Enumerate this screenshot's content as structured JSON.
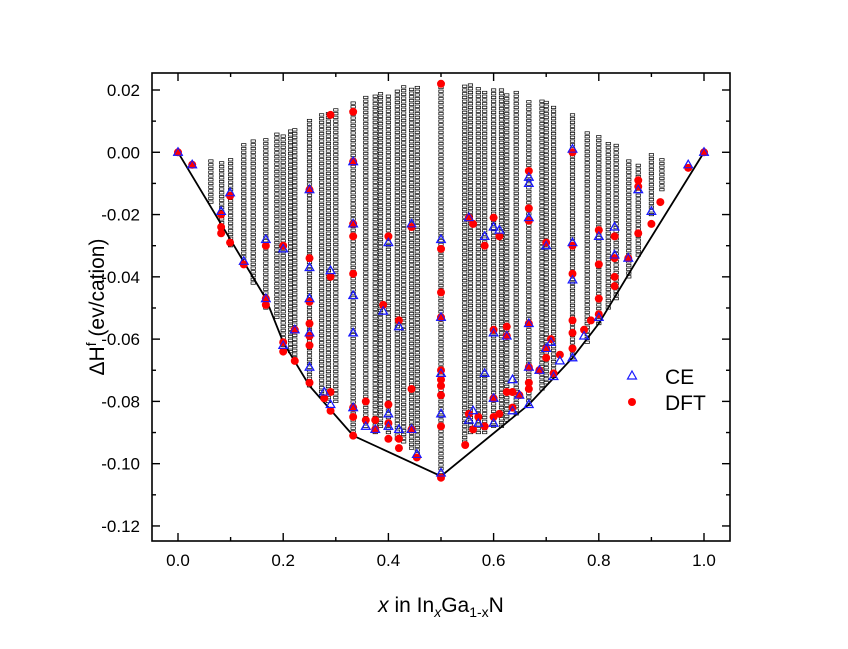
{
  "chart_data": {
    "type": "scatter",
    "xlabel_parts": {
      "x": "x",
      "in": " in In",
      "sub1": "x",
      "ga": "Ga",
      "sub2": "1-x",
      "n": "N"
    },
    "ylabel_parts": {
      "main": "ΔH",
      "sup": "f",
      "unit": " (ev/cation)"
    },
    "xlim": [
      -0.05,
      1.05
    ],
    "ylim": [
      -0.125,
      0.025
    ],
    "x_ticks": [
      "0.0",
      "0.2",
      "0.4",
      "0.6",
      "0.8",
      "1.0"
    ],
    "y_ticks": [
      "0.02",
      "0.00",
      "-0.02",
      "-0.04",
      "-0.06",
      "-0.08",
      "-0.10",
      "-0.12"
    ],
    "grid": false,
    "legend_position": "right",
    "colors": {
      "CE": "#1a1aff",
      "DFT": "#ff0000",
      "structures": "#000000",
      "hull": "#000000"
    },
    "series": [
      {
        "name": "CE",
        "marker": "open-triangle",
        "points": [
          [
            0,
            0
          ],
          [
            0.027,
            -0.004
          ],
          [
            0.082,
            -0.019
          ],
          [
            0.099,
            -0.013
          ],
          [
            0.125,
            -0.035
          ],
          [
            0.167,
            -0.028
          ],
          [
            0.167,
            -0.047
          ],
          [
            0.2,
            -0.031
          ],
          [
            0.2,
            -0.062
          ],
          [
            0.222,
            -0.057
          ],
          [
            0.25,
            -0.012
          ],
          [
            0.25,
            -0.037
          ],
          [
            0.25,
            -0.047
          ],
          [
            0.25,
            -0.058
          ],
          [
            0.25,
            -0.069
          ],
          [
            0.278,
            -0.077
          ],
          [
            0.29,
            -0.038
          ],
          [
            0.29,
            -0.081
          ],
          [
            0.333,
            -0.003
          ],
          [
            0.333,
            -0.023
          ],
          [
            0.333,
            -0.046
          ],
          [
            0.333,
            -0.058
          ],
          [
            0.333,
            -0.082
          ],
          [
            0.357,
            -0.088
          ],
          [
            0.375,
            -0.089
          ],
          [
            0.4,
            -0.029
          ],
          [
            0.4,
            -0.084
          ],
          [
            0.4,
            -0.088
          ],
          [
            0.42,
            -0.056
          ],
          [
            0.42,
            -0.089
          ],
          [
            0.39,
            -0.051
          ],
          [
            0.444,
            -0.023
          ],
          [
            0.444,
            -0.089
          ],
          [
            0.454,
            -0.097
          ],
          [
            0.5,
            -0.028
          ],
          [
            0.5,
            -0.053
          ],
          [
            0.5,
            -0.071
          ],
          [
            0.5,
            -0.084
          ],
          [
            0.5,
            -0.103
          ],
          [
            0.553,
            -0.021
          ],
          [
            0.553,
            -0.086
          ],
          [
            0.561,
            -0.083
          ],
          [
            0.571,
            -0.087
          ],
          [
            0.583,
            -0.027
          ],
          [
            0.583,
            -0.071
          ],
          [
            0.6,
            -0.024
          ],
          [
            0.6,
            -0.058
          ],
          [
            0.6,
            -0.079
          ],
          [
            0.6,
            -0.087
          ],
          [
            0.611,
            -0.025
          ],
          [
            0.625,
            -0.059
          ],
          [
            0.636,
            -0.073
          ],
          [
            0.636,
            -0.083
          ],
          [
            0.649,
            -0.078
          ],
          [
            0.667,
            -0.008
          ],
          [
            0.667,
            -0.01
          ],
          [
            0.667,
            -0.021
          ],
          [
            0.667,
            -0.055
          ],
          [
            0.667,
            -0.069
          ],
          [
            0.667,
            -0.081
          ],
          [
            0.687,
            -0.07
          ],
          [
            0.7,
            -0.03
          ],
          [
            0.7,
            -0.063
          ],
          [
            0.709,
            -0.061
          ],
          [
            0.714,
            -0.072
          ],
          [
            0.726,
            -0.067
          ],
          [
            0.75,
            0.001
          ],
          [
            0.75,
            -0.029
          ],
          [
            0.75,
            -0.041
          ],
          [
            0.75,
            -0.066
          ],
          [
            0.772,
            -0.059
          ],
          [
            0.8,
            -0.027
          ],
          [
            0.8,
            -0.053
          ],
          [
            0.83,
            -0.024
          ],
          [
            0.83,
            -0.033
          ],
          [
            0.856,
            -0.034
          ],
          [
            0.875,
            -0.012
          ],
          [
            0.9,
            -0.019
          ],
          [
            0.97,
            -0.004
          ],
          [
            1,
            0
          ]
        ]
      },
      {
        "name": "DFT",
        "marker": "filled-circle",
        "points": [
          [
            0,
            0
          ],
          [
            0.027,
            -0.004
          ],
          [
            0.082,
            -0.02
          ],
          [
            0.082,
            -0.024
          ],
          [
            0.082,
            -0.026
          ],
          [
            0.099,
            -0.014
          ],
          [
            0.099,
            -0.029
          ],
          [
            0.125,
            -0.036
          ],
          [
            0.167,
            -0.03
          ],
          [
            0.167,
            -0.047
          ],
          [
            0.167,
            -0.049
          ],
          [
            0.2,
            -0.03
          ],
          [
            0.2,
            -0.061
          ],
          [
            0.2,
            -0.064
          ],
          [
            0.222,
            -0.057
          ],
          [
            0.222,
            -0.067
          ],
          [
            0.25,
            -0.012
          ],
          [
            0.25,
            -0.034
          ],
          [
            0.25,
            -0.048
          ],
          [
            0.25,
            -0.055
          ],
          [
            0.25,
            -0.059
          ],
          [
            0.25,
            -0.062
          ],
          [
            0.25,
            -0.074
          ],
          [
            0.278,
            -0.079
          ],
          [
            0.29,
            0.012
          ],
          [
            0.29,
            -0.04
          ],
          [
            0.29,
            -0.077
          ],
          [
            0.29,
            -0.083
          ],
          [
            0.333,
            0.013
          ],
          [
            0.333,
            -0.003
          ],
          [
            0.333,
            -0.023
          ],
          [
            0.333,
            -0.027
          ],
          [
            0.333,
            -0.039
          ],
          [
            0.333,
            -0.082
          ],
          [
            0.333,
            -0.085
          ],
          [
            0.333,
            -0.091
          ],
          [
            0.357,
            -0.08
          ],
          [
            0.357,
            -0.086
          ],
          [
            0.375,
            -0.086
          ],
          [
            0.375,
            -0.089
          ],
          [
            0.4,
            -0.027
          ],
          [
            0.4,
            -0.081
          ],
          [
            0.4,
            -0.087
          ],
          [
            0.4,
            -0.092
          ],
          [
            0.42,
            -0.054
          ],
          [
            0.42,
            -0.092
          ],
          [
            0.42,
            -0.095
          ],
          [
            0.39,
            -0.049
          ],
          [
            0.444,
            -0.024
          ],
          [
            0.444,
            -0.076
          ],
          [
            0.444,
            -0.089
          ],
          [
            0.454,
            -0.098
          ],
          [
            0.5,
            0.022
          ],
          [
            0.5,
            -0.031
          ],
          [
            0.5,
            -0.045
          ],
          [
            0.5,
            -0.053
          ],
          [
            0.5,
            -0.07
          ],
          [
            0.5,
            -0.073
          ],
          [
            0.5,
            -0.075
          ],
          [
            0.5,
            -0.078
          ],
          [
            0.5,
            -0.088
          ],
          [
            0.5,
            -0.1045
          ],
          [
            0.546,
            -0.094
          ],
          [
            0.553,
            -0.021
          ],
          [
            0.553,
            -0.084
          ],
          [
            0.561,
            -0.023
          ],
          [
            0.561,
            -0.089
          ],
          [
            0.571,
            -0.085
          ],
          [
            0.583,
            -0.03
          ],
          [
            0.583,
            -0.088
          ],
          [
            0.6,
            -0.021
          ],
          [
            0.6,
            -0.057
          ],
          [
            0.6,
            -0.079
          ],
          [
            0.6,
            -0.085
          ],
          [
            0.611,
            -0.027
          ],
          [
            0.611,
            -0.084
          ],
          [
            0.625,
            -0.056
          ],
          [
            0.625,
            -0.059
          ],
          [
            0.625,
            -0.077
          ],
          [
            0.636,
            -0.077
          ],
          [
            0.636,
            -0.082
          ],
          [
            0.649,
            -0.078
          ],
          [
            0.667,
            -0.006
          ],
          [
            0.667,
            -0.018
          ],
          [
            0.667,
            -0.022
          ],
          [
            0.667,
            -0.055
          ],
          [
            0.667,
            -0.069
          ],
          [
            0.667,
            -0.074
          ],
          [
            0.667,
            -0.076
          ],
          [
            0.687,
            -0.07
          ],
          [
            0.7,
            -0.029
          ],
          [
            0.7,
            -0.063
          ],
          [
            0.7,
            -0.066
          ],
          [
            0.709,
            -0.06
          ],
          [
            0.714,
            -0.071
          ],
          [
            0.726,
            -0.065
          ],
          [
            0.75,
            0.0
          ],
          [
            0.75,
            -0.03
          ],
          [
            0.75,
            -0.039
          ],
          [
            0.75,
            -0.054
          ],
          [
            0.75,
            -0.058
          ],
          [
            0.75,
            -0.063
          ],
          [
            0.772,
            -0.057
          ],
          [
            0.785,
            -0.054
          ],
          [
            0.8,
            -0.025
          ],
          [
            0.8,
            -0.036
          ],
          [
            0.8,
            -0.047
          ],
          [
            0.8,
            -0.052
          ],
          [
            0.83,
            -0.027
          ],
          [
            0.83,
            -0.034
          ],
          [
            0.83,
            -0.04
          ],
          [
            0.83,
            -0.043
          ],
          [
            0.856,
            -0.034
          ],
          [
            0.875,
            -0.009
          ],
          [
            0.875,
            -0.011
          ],
          [
            0.875,
            -0.026
          ],
          [
            0.9,
            -0.023
          ],
          [
            0.917,
            -0.016
          ],
          [
            0.97,
            -0.005
          ],
          [
            1,
            0
          ]
        ]
      }
    ],
    "structure_columns": [
      [
        0.0625,
        -0.016,
        -0.002
      ],
      [
        0.083,
        -0.025,
        -0.003
      ],
      [
        0.1,
        -0.03,
        -0.002
      ],
      [
        0.125,
        -0.036,
        0.003
      ],
      [
        0.143,
        -0.042,
        0.004
      ],
      [
        0.167,
        -0.05,
        0.005
      ],
      [
        0.188,
        -0.053,
        0.006
      ],
      [
        0.2,
        -0.062,
        0.006
      ],
      [
        0.214,
        -0.064,
        0.007
      ],
      [
        0.222,
        -0.066,
        0.008
      ],
      [
        0.25,
        -0.075,
        0.011
      ],
      [
        0.273,
        -0.078,
        0.013
      ],
      [
        0.286,
        -0.08,
        0.013
      ],
      [
        0.3,
        -0.08,
        0.014
      ],
      [
        0.333,
        -0.091,
        0.016
      ],
      [
        0.357,
        -0.088,
        0.018
      ],
      [
        0.375,
        -0.09,
        0.019
      ],
      [
        0.385,
        -0.088,
        0.019
      ],
      [
        0.4,
        -0.09,
        0.019
      ],
      [
        0.417,
        -0.092,
        0.02
      ],
      [
        0.429,
        -0.093,
        0.021
      ],
      [
        0.444,
        -0.095,
        0.021
      ],
      [
        0.455,
        -0.098,
        0.021
      ],
      [
        0.5,
        -0.104,
        0.022
      ],
      [
        0.545,
        -0.094,
        0.022
      ],
      [
        0.556,
        -0.09,
        0.022
      ],
      [
        0.571,
        -0.09,
        0.021
      ],
      [
        0.583,
        -0.09,
        0.02
      ],
      [
        0.6,
        -0.088,
        0.02
      ],
      [
        0.615,
        -0.088,
        0.02
      ],
      [
        0.625,
        -0.086,
        0.019
      ],
      [
        0.643,
        -0.084,
        0.02
      ],
      [
        0.667,
        -0.081,
        0.017
      ],
      [
        0.692,
        -0.076,
        0.017
      ],
      [
        0.7,
        -0.074,
        0.016
      ],
      [
        0.714,
        -0.072,
        0.015
      ],
      [
        0.75,
        -0.066,
        0.012
      ],
      [
        0.778,
        -0.061,
        0.007
      ],
      [
        0.8,
        -0.055,
        0.006
      ],
      [
        0.818,
        -0.05,
        0.003
      ],
      [
        0.833,
        -0.047,
        0.003
      ],
      [
        0.857,
        -0.04,
        -0.002
      ],
      [
        0.875,
        -0.033,
        -0.004
      ],
      [
        0.9,
        -0.02,
        0
      ],
      [
        0.92,
        -0.012,
        -0.002
      ]
    ],
    "convex_hull": [
      [
        0,
        0
      ],
      [
        0.167,
        -0.047
      ],
      [
        0.2,
        -0.061
      ],
      [
        0.25,
        -0.075
      ],
      [
        0.333,
        -0.091
      ],
      [
        0.5,
        -0.104
      ],
      [
        0.667,
        -0.081
      ],
      [
        0.75,
        -0.066
      ],
      [
        0.8,
        -0.055
      ],
      [
        0.875,
        -0.034
      ],
      [
        1,
        0
      ]
    ],
    "legend": [
      "CE",
      "DFT"
    ]
  }
}
